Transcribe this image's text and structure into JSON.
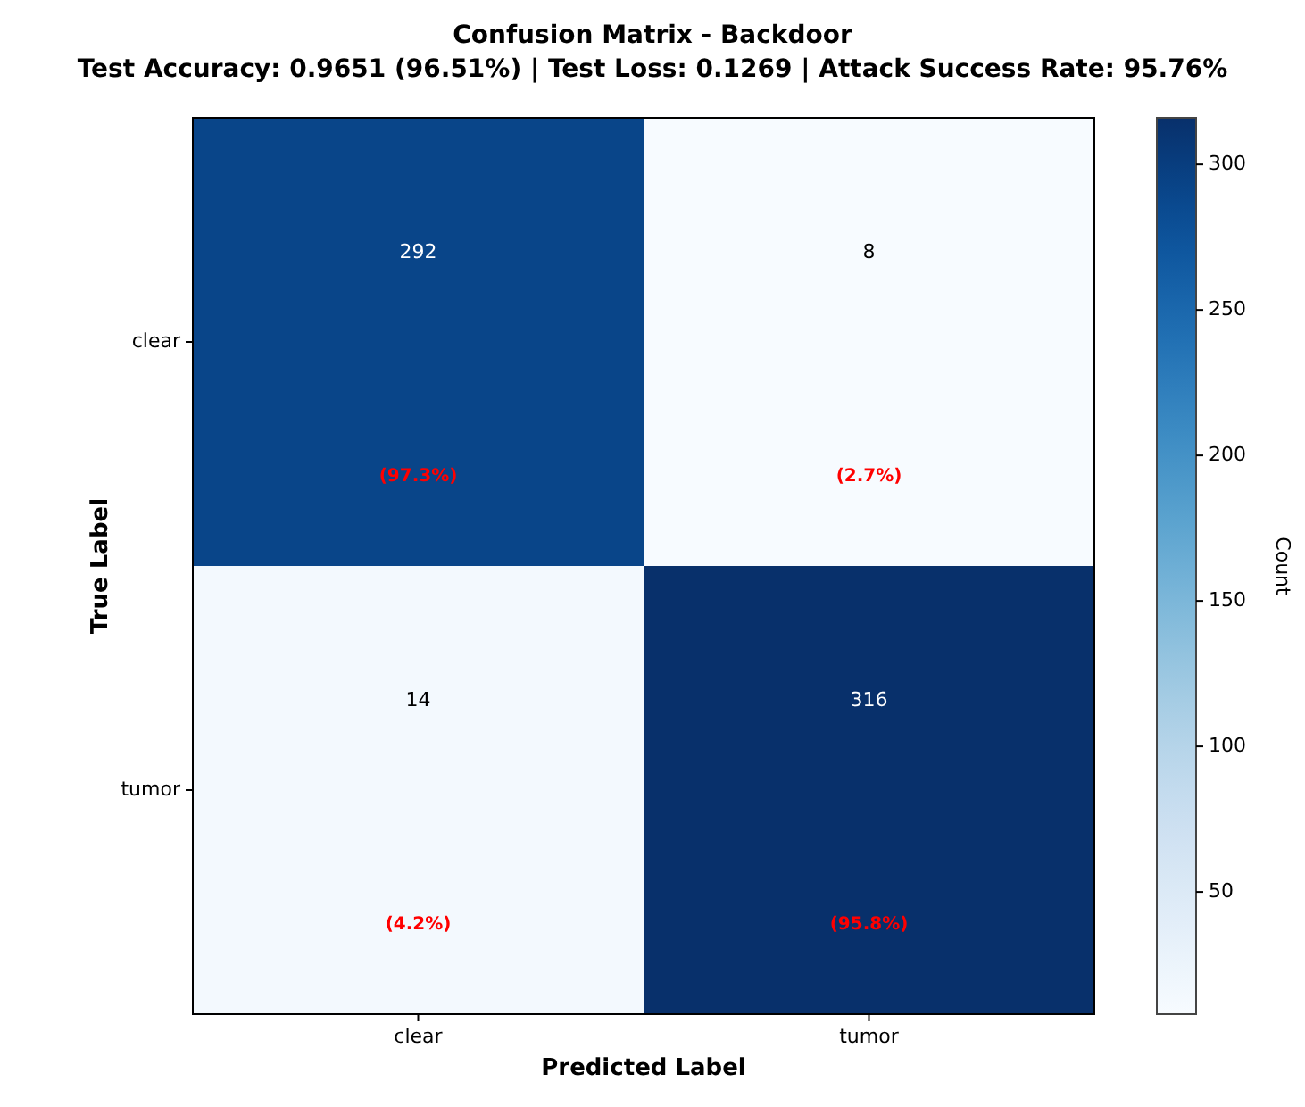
{
  "chart_data": {
    "type": "heatmap",
    "title": "Confusion Matrix - Backdoor",
    "subtitle": "Test Accuracy: 0.9651 (96.51%) | Test Loss: 0.1269 | Attack Success Rate: 95.76%",
    "xlabel": "Predicted Label",
    "ylabel": "True Label",
    "clabel": "Count",
    "categories": [
      "clear",
      "tumor"
    ],
    "y_categories": [
      "clear",
      "tumor"
    ],
    "cells": [
      [
        292,
        8
      ],
      [
        14,
        316
      ]
    ],
    "cell_labels": [
      [
        "292\n(97.3%)",
        "8\n(2.7%)"
      ],
      [
        "14\n(4.2%)",
        "316\n(95.8%)"
      ]
    ],
    "clim": [
      8,
      316
    ],
    "cticks": [
      50,
      100,
      150,
      200,
      250,
      300
    ]
  }
}
